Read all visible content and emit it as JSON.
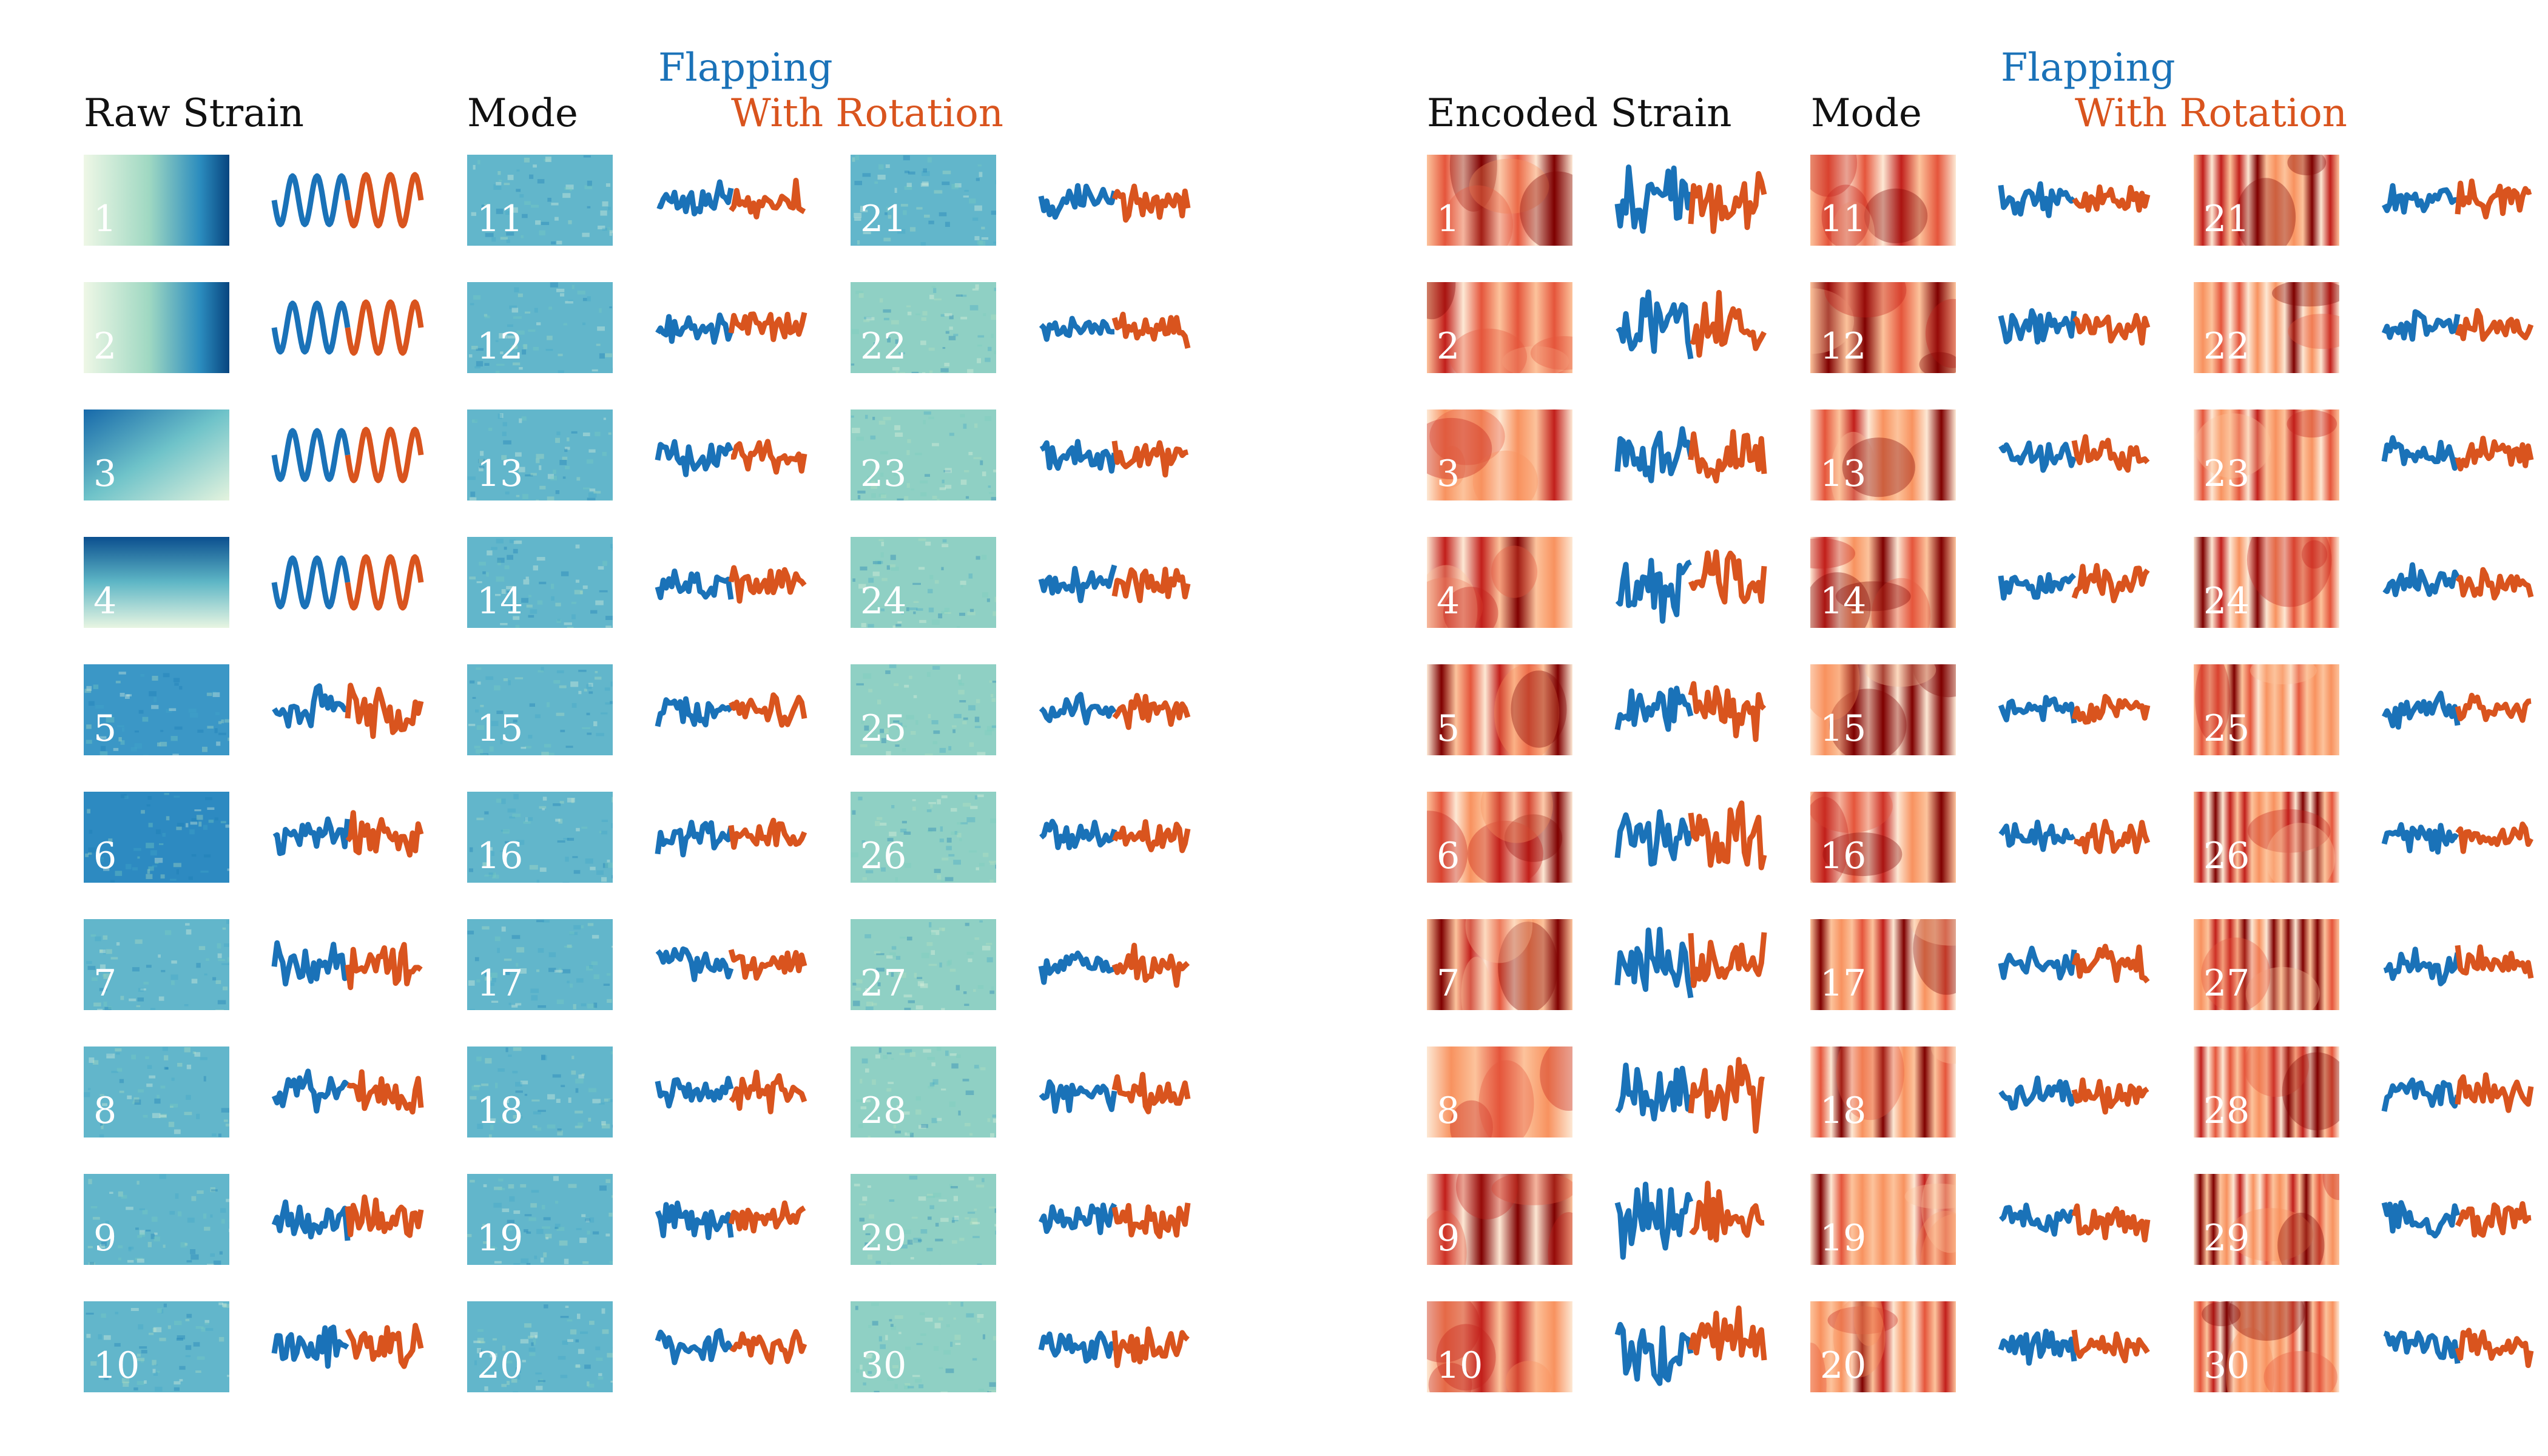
{
  "panels": [
    {
      "id": "raw",
      "header_title": "Raw Strain",
      "header_mode": "Mode",
      "legend_flapping": "Flapping",
      "legend_rotation": "With Rotation",
      "colormap": "GnBu",
      "modes": [
        "1",
        "2",
        "3",
        "4",
        "5",
        "6",
        "7",
        "8",
        "9",
        "10",
        "11",
        "12",
        "13",
        "14",
        "15",
        "16",
        "17",
        "18",
        "19",
        "20",
        "21",
        "22",
        "23",
        "24",
        "25",
        "26",
        "27",
        "28",
        "29",
        "30"
      ]
    },
    {
      "id": "encoded",
      "header_title": "Encoded Strain",
      "header_mode": "Mode",
      "legend_flapping": "Flapping",
      "legend_rotation": "With Rotation",
      "colormap": "OrRd",
      "modes": [
        "1",
        "2",
        "3",
        "4",
        "5",
        "6",
        "7",
        "8",
        "9",
        "10",
        "11",
        "12",
        "13",
        "14",
        "15",
        "16",
        "17",
        "18",
        "19",
        "20",
        "21",
        "22",
        "23",
        "24",
        "25",
        "26",
        "27",
        "28",
        "29",
        "30"
      ]
    }
  ],
  "colors": {
    "flapping": "#1a72b8",
    "rotation": "#d9541e",
    "text": "#111111"
  }
}
